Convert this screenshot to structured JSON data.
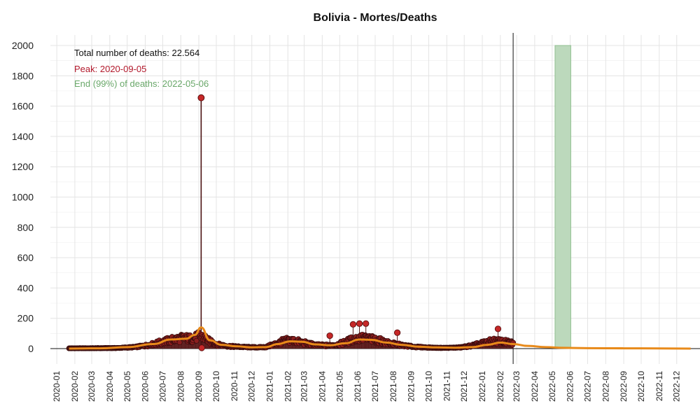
{
  "chart_data": {
    "type": "scatter",
    "title": "Bolivia - Mortes/Deaths",
    "xlabel": "",
    "ylabel": "",
    "ylim": [
      0,
      2000
    ],
    "xlim": [
      "2019-12-21",
      "2023-01-10"
    ],
    "yticks": [
      "0",
      "200",
      "400",
      "600",
      "800",
      "1000",
      "1200",
      "1400",
      "1600",
      "1800",
      "2000"
    ],
    "xticks": [
      "2020-01",
      "2020-02",
      "2020-03",
      "2020-04",
      "2020-05",
      "2020-06",
      "2020-07",
      "2020-08",
      "2020-09",
      "2020-10",
      "2020-11",
      "2020-12",
      "2021-01",
      "2021-02",
      "2021-03",
      "2021-04",
      "2021-05",
      "2021-06",
      "2021-07",
      "2021-08",
      "2021-09",
      "2021-10",
      "2021-11",
      "2021-12",
      "2022-01",
      "2022-02",
      "2022-03",
      "2022-04",
      "2022-05",
      "2022-06",
      "2022-07",
      "2022-08",
      "2022-09",
      "2022-10",
      "2022-11",
      "2022-12"
    ],
    "grid": true,
    "annotations": {
      "total": "Total number of deaths: 22.564",
      "peak": "Peak: 2020-09-05",
      "end": "End (99%) of deaths: 2022-05-06"
    },
    "data_end_date": "2022-02-23",
    "end_band": [
      "2022-05-06",
      "2022-06-02"
    ],
    "peak_point": {
      "x": "2020-09-05",
      "y": 1655
    },
    "notable_points": [
      {
        "x": "2020-09-06",
        "y": 5
      },
      {
        "x": "2021-04-14",
        "y": 85
      },
      {
        "x": "2021-05-24",
        "y": 160
      },
      {
        "x": "2021-06-04",
        "y": 165
      },
      {
        "x": "2021-06-15",
        "y": 165
      },
      {
        "x": "2021-08-08",
        "y": 105
      },
      {
        "x": "2022-01-28",
        "y": 130
      }
    ],
    "series": [
      {
        "x": [
          "2020-01-22",
          "2020-03-15",
          "2020-04-15",
          "2020-05-15",
          "2020-06-10",
          "2020-07-01",
          "2020-07-20",
          "2020-08-05",
          "2020-08-20",
          "2020-09-01",
          "2020-09-10",
          "2020-09-20",
          "2020-10-05",
          "2020-10-25",
          "2020-11-20",
          "2020-12-10",
          "2020-12-25",
          "2021-01-10",
          "2021-01-25",
          "2021-02-05",
          "2021-02-20",
          "2021-03-10",
          "2021-03-25",
          "2021-04-15",
          "2021-05-01",
          "2021-05-20",
          "2021-06-05",
          "2021-06-20",
          "2021-07-10",
          "2021-07-25",
          "2021-08-15",
          "2021-09-05",
          "2021-09-25",
          "2021-10-15",
          "2021-11-05",
          "2021-11-25",
          "2021-12-15",
          "2022-01-01",
          "2022-01-20",
          "2022-02-05",
          "2022-02-23"
        ],
        "values": [
          2,
          3,
          4,
          10,
          25,
          45,
          60,
          70,
          65,
          80,
          75,
          45,
          25,
          15,
          10,
          8,
          10,
          30,
          50,
          55,
          45,
          30,
          22,
          20,
          30,
          55,
          70,
          65,
          50,
          35,
          22,
          12,
          8,
          5,
          5,
          8,
          20,
          35,
          50,
          45,
          35
        ]
      },
      {
        "x": [
          "2020-01-22",
          "2020-03-15",
          "2020-05-01",
          "2020-06-15",
          "2020-07-15",
          "2020-08-10",
          "2020-08-25",
          "2020-09-05",
          "2020-09-20",
          "2020-10-10",
          "2020-11-05",
          "2020-12-01",
          "2020-12-25",
          "2021-01-15",
          "2021-02-05",
          "2021-02-25",
          "2021-03-20",
          "2021-04-15",
          "2021-05-10",
          "2021-06-05",
          "2021-06-25",
          "2021-07-20",
          "2021-08-15",
          "2021-09-15",
          "2021-10-15",
          "2021-11-15",
          "2021-12-15",
          "2022-01-10",
          "2022-02-01",
          "2022-02-23",
          "2022-03-20",
          "2022-04-20",
          "2022-05-20",
          "2022-07-01",
          "2022-09-01",
          "2022-11-01",
          "2022-12-25"
        ],
        "values": [
          0,
          2,
          10,
          30,
          60,
          65,
          90,
          140,
          55,
          25,
          15,
          8,
          10,
          30,
          48,
          45,
          28,
          22,
          35,
          60,
          58,
          40,
          25,
          12,
          8,
          6,
          10,
          25,
          40,
          30,
          18,
          10,
          5,
          3,
          2,
          1,
          0
        ]
      }
    ]
  }
}
